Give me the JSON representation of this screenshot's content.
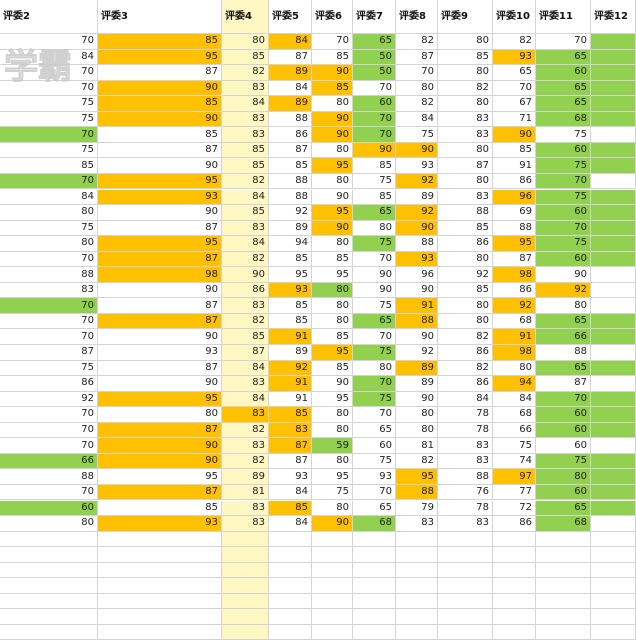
{
  "app": "spreadsheet",
  "colors": {
    "orange": "#FFC000",
    "green": "#92D050",
    "selected_column": "#FFF7C2",
    "gridline": "#D4D4D4"
  },
  "headers": [
    "评委2",
    "评委3",
    "评委4",
    "评委5",
    "评委6",
    "评委7",
    "评委8",
    "评委9",
    "评委10",
    "评委11",
    "评委12"
  ],
  "watermark_text": "学霸",
  "rows": [
    {
      "v": [
        "70",
        "85",
        "80",
        "84",
        "70",
        "65",
        "82",
        "80",
        "82",
        "70",
        ""
      ],
      "c": [
        "",
        "o",
        "",
        "o",
        "",
        "g",
        "",
        "",
        "",
        "",
        "g"
      ]
    },
    {
      "v": [
        "84",
        "95",
        "85",
        "87",
        "85",
        "50",
        "87",
        "85",
        "93",
        "65",
        ""
      ],
      "c": [
        "",
        "o",
        "",
        "",
        "",
        "g",
        "",
        "",
        "o",
        "g",
        "g"
      ]
    },
    {
      "v": [
        "70",
        "87",
        "82",
        "89",
        "90",
        "50",
        "70",
        "80",
        "65",
        "60",
        ""
      ],
      "c": [
        "",
        "",
        "",
        "o",
        "o",
        "g",
        "",
        "",
        "",
        "g",
        "g"
      ]
    },
    {
      "v": [
        "70",
        "90",
        "83",
        "84",
        "85",
        "70",
        "80",
        "82",
        "70",
        "65",
        ""
      ],
      "c": [
        "",
        "o",
        "",
        "",
        "o",
        "",
        "",
        "",
        "",
        "g",
        "g"
      ]
    },
    {
      "v": [
        "75",
        "85",
        "84",
        "89",
        "80",
        "60",
        "82",
        "80",
        "67",
        "65",
        ""
      ],
      "c": [
        "",
        "o",
        "",
        "o",
        "",
        "g",
        "",
        "",
        "",
        "g",
        "g"
      ]
    },
    {
      "v": [
        "75",
        "90",
        "83",
        "88",
        "90",
        "70",
        "84",
        "83",
        "71",
        "68",
        ""
      ],
      "c": [
        "",
        "o",
        "",
        "",
        "o",
        "g",
        "",
        "",
        "",
        "g",
        "g"
      ]
    },
    {
      "v": [
        "70",
        "85",
        "83",
        "86",
        "90",
        "70",
        "75",
        "83",
        "90",
        "75",
        ""
      ],
      "c": [
        "g",
        "",
        "",
        "",
        "o",
        "g",
        "",
        "",
        "o",
        "",
        ""
      ]
    },
    {
      "v": [
        "75",
        "87",
        "85",
        "87",
        "80",
        "90",
        "90",
        "80",
        "85",
        "60",
        ""
      ],
      "c": [
        "",
        "",
        "",
        "",
        "",
        "o",
        "o",
        "",
        "",
        "g",
        "g"
      ]
    },
    {
      "v": [
        "85",
        "90",
        "85",
        "85",
        "95",
        "85",
        "93",
        "87",
        "91",
        "75",
        ""
      ],
      "c": [
        "",
        "",
        "",
        "",
        "o",
        "",
        "",
        "",
        "",
        "g",
        "g"
      ]
    },
    {
      "v": [
        "70",
        "95",
        "82",
        "88",
        "80",
        "75",
        "92",
        "80",
        "86",
        "70",
        ""
      ],
      "c": [
        "g",
        "o",
        "",
        "",
        "",
        "",
        "o",
        "",
        "",
        "g",
        ""
      ]
    },
    {
      "v": [
        "84",
        "93",
        "84",
        "88",
        "90",
        "85",
        "89",
        "83",
        "96",
        "75",
        ""
      ],
      "c": [
        "",
        "o",
        "",
        "",
        "",
        "",
        "",
        "",
        "o",
        "g",
        "g"
      ]
    },
    {
      "v": [
        "80",
        "90",
        "85",
        "92",
        "95",
        "65",
        "92",
        "88",
        "69",
        "60",
        ""
      ],
      "c": [
        "",
        "",
        "",
        "",
        "o",
        "g",
        "o",
        "",
        "",
        "g",
        "g"
      ]
    },
    {
      "v": [
        "75",
        "87",
        "83",
        "89",
        "90",
        "80",
        "90",
        "85",
        "88",
        "70",
        ""
      ],
      "c": [
        "",
        "",
        "",
        "",
        "o",
        "",
        "o",
        "",
        "",
        "g",
        "g"
      ]
    },
    {
      "v": [
        "80",
        "95",
        "84",
        "94",
        "80",
        "75",
        "88",
        "86",
        "95",
        "75",
        ""
      ],
      "c": [
        "",
        "o",
        "",
        "",
        "",
        "g",
        "",
        "",
        "o",
        "g",
        "g"
      ]
    },
    {
      "v": [
        "70",
        "87",
        "82",
        "85",
        "85",
        "70",
        "93",
        "80",
        "87",
        "60",
        ""
      ],
      "c": [
        "",
        "o",
        "",
        "",
        "",
        "",
        "o",
        "",
        "",
        "g",
        "g"
      ]
    },
    {
      "v": [
        "88",
        "98",
        "90",
        "95",
        "95",
        "90",
        "96",
        "92",
        "98",
        "90",
        ""
      ],
      "c": [
        "",
        "o",
        "",
        "",
        "",
        "",
        "",
        "",
        "o",
        "",
        ""
      ]
    },
    {
      "v": [
        "83",
        "90",
        "86",
        "93",
        "80",
        "90",
        "90",
        "85",
        "86",
        "92",
        ""
      ],
      "c": [
        "",
        "",
        "",
        "o",
        "g",
        "",
        "",
        "",
        "",
        "o",
        ""
      ]
    },
    {
      "v": [
        "70",
        "87",
        "83",
        "85",
        "80",
        "75",
        "91",
        "80",
        "92",
        "80",
        ""
      ],
      "c": [
        "g",
        "",
        "",
        "",
        "",
        "",
        "o",
        "",
        "o",
        "",
        ""
      ]
    },
    {
      "v": [
        "70",
        "87",
        "82",
        "85",
        "80",
        "65",
        "88",
        "80",
        "68",
        "65",
        ""
      ],
      "c": [
        "",
        "o",
        "",
        "",
        "",
        "g",
        "o",
        "",
        "",
        "g",
        "g"
      ]
    },
    {
      "v": [
        "70",
        "90",
        "85",
        "91",
        "85",
        "70",
        "90",
        "82",
        "91",
        "66",
        ""
      ],
      "c": [
        "",
        "",
        "",
        "o",
        "",
        "",
        "",
        "",
        "o",
        "g",
        "g"
      ]
    },
    {
      "v": [
        "87",
        "93",
        "87",
        "89",
        "95",
        "75",
        "92",
        "86",
        "98",
        "88",
        ""
      ],
      "c": [
        "",
        "",
        "",
        "",
        "o",
        "g",
        "",
        "",
        "o",
        "",
        ""
      ]
    },
    {
      "v": [
        "75",
        "87",
        "84",
        "92",
        "85",
        "80",
        "89",
        "82",
        "80",
        "65",
        ""
      ],
      "c": [
        "",
        "",
        "",
        "o",
        "",
        "",
        "o",
        "",
        "",
        "g",
        "g"
      ]
    },
    {
      "v": [
        "86",
        "90",
        "83",
        "91",
        "90",
        "70",
        "89",
        "86",
        "94",
        "87",
        ""
      ],
      "c": [
        "",
        "",
        "",
        "o",
        "",
        "g",
        "",
        "",
        "o",
        "",
        ""
      ]
    },
    {
      "v": [
        "92",
        "95",
        "84",
        "91",
        "95",
        "75",
        "90",
        "84",
        "84",
        "70",
        ""
      ],
      "c": [
        "",
        "o",
        "",
        "",
        "",
        "g",
        "",
        "",
        "",
        "g",
        "g"
      ]
    },
    {
      "v": [
        "70",
        "80",
        "83",
        "85",
        "80",
        "70",
        "80",
        "78",
        "68",
        "60",
        ""
      ],
      "c": [
        "",
        "",
        "o",
        "o",
        "",
        "",
        "",
        "",
        "",
        "g",
        "g"
      ]
    },
    {
      "v": [
        "70",
        "87",
        "82",
        "83",
        "80",
        "65",
        "80",
        "78",
        "66",
        "60",
        ""
      ],
      "c": [
        "",
        "o",
        "",
        "o",
        "",
        "",
        "",
        "",
        "",
        "g",
        "g"
      ]
    },
    {
      "v": [
        "70",
        "90",
        "83",
        "87",
        "59",
        "60",
        "81",
        "83",
        "75",
        "60",
        ""
      ],
      "c": [
        "",
        "o",
        "",
        "o",
        "g",
        "",
        "",
        "",
        "",
        "",
        ""
      ]
    },
    {
      "v": [
        "66",
        "90",
        "82",
        "87",
        "80",
        "75",
        "82",
        "83",
        "74",
        "75",
        ""
      ],
      "c": [
        "g",
        "o",
        "",
        "",
        "",
        "",
        "",
        "",
        "",
        "g",
        "g"
      ]
    },
    {
      "v": [
        "88",
        "95",
        "89",
        "93",
        "95",
        "93",
        "95",
        "88",
        "97",
        "80",
        ""
      ],
      "c": [
        "",
        "",
        "",
        "",
        "",
        "",
        "o",
        "",
        "o",
        "g",
        "g"
      ]
    },
    {
      "v": [
        "70",
        "87",
        "81",
        "84",
        "75",
        "70",
        "88",
        "76",
        "77",
        "60",
        ""
      ],
      "c": [
        "",
        "o",
        "",
        "",
        "",
        "",
        "o",
        "",
        "",
        "g",
        "g"
      ]
    },
    {
      "v": [
        "60",
        "85",
        "83",
        "85",
        "80",
        "65",
        "79",
        "78",
        "72",
        "65",
        ""
      ],
      "c": [
        "g",
        "",
        "",
        "o",
        "",
        "",
        "",
        "",
        "",
        "g",
        "g"
      ]
    },
    {
      "v": [
        "80",
        "93",
        "83",
        "84",
        "90",
        "68",
        "83",
        "83",
        "86",
        "68",
        ""
      ],
      "c": [
        "",
        "o",
        "",
        "",
        "o",
        "g",
        "",
        "",
        "",
        "g",
        ""
      ]
    }
  ]
}
